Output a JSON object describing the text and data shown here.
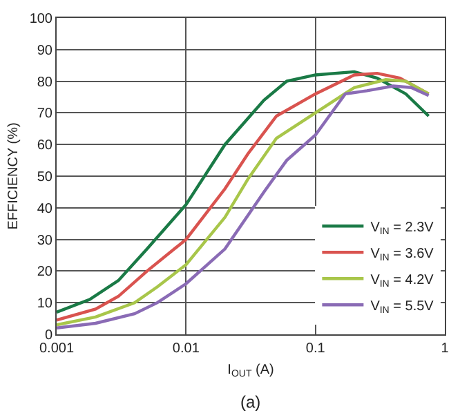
{
  "chart_data": {
    "type": "line",
    "xlabel": "I$_{OUT}$ (A)",
    "ylabel": "EFFICIENCY (%)",
    "annotations": [
      "(a)"
    ],
    "log": "x",
    "grid": true,
    "legend": "bottom right",
    "line_style": "solid",
    "xlim": [
      0.001,
      1
    ],
    "xticks": [
      0.001,
      0.01,
      0.1,
      1
    ],
    "ylim": [
      0,
      100
    ],
    "yticks": [
      0,
      10,
      20,
      30,
      40,
      50,
      60,
      70,
      80,
      90,
      100
    ],
    "series": [
      {
        "name": "V$_{IN}$ = 2.3V",
        "color": "#1a7a46",
        "x": [
          0.001,
          0.0018,
          0.003,
          0.005,
          0.01,
          0.02,
          0.04,
          0.06,
          0.1,
          0.2,
          0.3,
          0.5,
          0.75
        ],
        "values": [
          7,
          11,
          17,
          27,
          41,
          60,
          74,
          80,
          82,
          83,
          81,
          76,
          69
        ]
      },
      {
        "name": "V$_{IN}$ = 3.6V",
        "color": "#d9534f",
        "x": [
          0.001,
          0.002,
          0.003,
          0.005,
          0.01,
          0.02,
          0.03,
          0.05,
          0.1,
          0.2,
          0.3,
          0.45,
          0.75
        ],
        "values": [
          4.5,
          8,
          12,
          20,
          30,
          46,
          57,
          69,
          76,
          82,
          82.5,
          81,
          76
        ]
      },
      {
        "name": "V$_{IN}$ = 4.2V",
        "color": "#a8c64a",
        "x": [
          0.001,
          0.002,
          0.004,
          0.006,
          0.01,
          0.02,
          0.03,
          0.05,
          0.1,
          0.2,
          0.35,
          0.5,
          0.75
        ],
        "values": [
          3,
          5.5,
          10,
          15,
          22,
          37,
          49,
          62,
          70,
          78,
          80.5,
          80,
          76
        ]
      },
      {
        "name": "V$_{IN}$ = 5.5V",
        "color": "#8a6bb5",
        "x": [
          0.001,
          0.002,
          0.004,
          0.006,
          0.01,
          0.02,
          0.04,
          0.06,
          0.1,
          0.17,
          0.25,
          0.4,
          0.55,
          0.75
        ],
        "values": [
          2,
          3.5,
          6.5,
          10,
          16,
          27,
          45,
          55,
          63,
          76,
          77,
          78.5,
          78,
          75.5
        ]
      }
    ]
  }
}
